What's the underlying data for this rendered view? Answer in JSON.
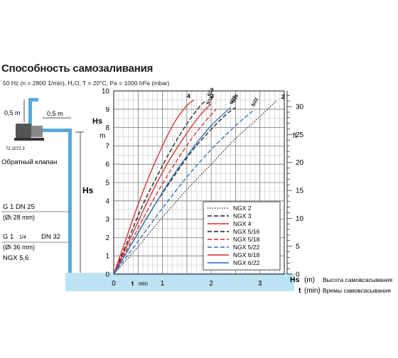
{
  "title": "Способность самозаливания",
  "conditions": "50 Hz (n = 2800 1/min),  H₂O, T = 20°C, Pa = 1000 hPa (mbar)",
  "diagram": {
    "dim_vertical": "0,5 m",
    "dim_horizontal": "0,5 m",
    "code": "72.1072.3",
    "valve_label": "Обратный клапан",
    "hs_label": "Hs",
    "connection_1": {
      "line1": "G 1     DN 25",
      "line2": "(Øi 28 mm)"
    },
    "connection_2": {
      "line1": "G 1",
      "frac": "1/4",
      "line1b": "DN 32",
      "line2": "(Øi 36 mm)",
      "line3": "NGX 5,6"
    }
  },
  "axes": {
    "left_title": "Hs",
    "left_unit": "m",
    "right_unit": "ft",
    "x_unit_label": "t",
    "x_unit_min": "min",
    "left_ticks": [
      "0",
      "1",
      "2",
      "3",
      "4",
      "5",
      "6",
      "7",
      "8",
      "9",
      "10"
    ],
    "right_ticks": [
      "0",
      "5",
      "10",
      "15",
      "20",
      "25",
      "30"
    ],
    "x_ticks": [
      "0",
      "1",
      "2",
      "3"
    ],
    "bottom_legend_1_symbol": "Hs",
    "bottom_legend_1_unit": "(m)",
    "bottom_legend_1_text": "Высота самовсасывания",
    "bottom_legend_2_symbol": "t",
    "bottom_legend_2_unit": "(min)",
    "bottom_legend_2_text": "Времы самовсасывания"
  },
  "colors": {
    "black": "#1a1a1a",
    "red": "#d42a2a",
    "blue": "#2a6fb4",
    "water": "#bde3f2",
    "pipe": "#5aa9d6"
  },
  "chart_data": {
    "type": "line",
    "title": "",
    "xlabel": "t (min)",
    "ylabel": "Hs (m)",
    "xlim": [
      0,
      3.5
    ],
    "ylim": [
      0,
      10
    ],
    "y2_unit": "ft",
    "y2lim": [
      0,
      32.8
    ],
    "grid": true,
    "legend_position": "lower-right",
    "series": [
      {
        "name": "NGX 2",
        "color": "#1a1a1a",
        "dash": "dot",
        "curve_label": "2",
        "x": [
          0,
          0.5,
          1.0,
          1.5,
          2.0,
          2.5,
          3.0,
          3.35
        ],
        "y": [
          0,
          1.5,
          3.1,
          4.6,
          6.0,
          7.4,
          8.6,
          9.5
        ]
      },
      {
        "name": "NGX 3",
        "color": "#1a1a1a",
        "dash": "dash",
        "curve_label": "3",
        "x": [
          0,
          0.3,
          0.6,
          0.9,
          1.2,
          1.5,
          1.75,
          1.9
        ],
        "y": [
          0,
          1.9,
          3.8,
          5.4,
          6.9,
          8.2,
          9.1,
          9.5
        ]
      },
      {
        "name": "NGX 4",
        "color": "#d42a2a",
        "dash": "solid",
        "curve_label": "4",
        "x": [
          0,
          0.25,
          0.5,
          0.75,
          1.0,
          1.25,
          1.5,
          1.65
        ],
        "y": [
          0,
          1.9,
          3.8,
          5.5,
          7.0,
          8.3,
          9.2,
          9.5
        ]
      },
      {
        "name": "NGX 5/16",
        "color": "#1a1a1a",
        "dash": "dash",
        "curve_label": "5/16",
        "x": [
          0,
          0.4,
          0.8,
          1.2,
          1.6,
          2.0,
          2.3,
          2.5
        ],
        "y": [
          0,
          1.8,
          3.6,
          5.2,
          6.7,
          7.9,
          8.7,
          9.1
        ]
      },
      {
        "name": "NGX 5/18",
        "color": "#d42a2a",
        "dash": "dash",
        "curve_label": "5/18",
        "x": [
          0,
          0.4,
          0.8,
          1.2,
          1.6,
          1.9,
          2.1
        ],
        "y": [
          0,
          2.0,
          4.0,
          5.8,
          7.4,
          8.4,
          9.0
        ]
      },
      {
        "name": "NGX 5/22",
        "color": "#2a6fb4",
        "dash": "dash",
        "curve_label": "5/22",
        "x": [
          0,
          0.5,
          1.0,
          1.5,
          2.0,
          2.5,
          2.85
        ],
        "y": [
          0,
          1.8,
          3.6,
          5.3,
          6.8,
          8.1,
          8.9
        ]
      },
      {
        "name": "NGX 6/18",
        "color": "#d42a2a",
        "dash": "solid",
        "curve_label": "6/18",
        "x": [
          0,
          0.35,
          0.7,
          1.05,
          1.4,
          1.75,
          2.0
        ],
        "y": [
          0,
          2.0,
          4.0,
          5.8,
          7.3,
          8.6,
          9.3
        ]
      },
      {
        "name": "NGX 6/22",
        "color": "#2a6fb4",
        "dash": "solid",
        "curve_label": "6/22",
        "x": [
          0,
          0.4,
          0.8,
          1.2,
          1.6,
          2.0,
          2.4
        ],
        "y": [
          0,
          1.8,
          3.6,
          5.3,
          6.8,
          8.1,
          9.1
        ]
      }
    ],
    "legend": [
      "NGX 2",
      "NGX 3",
      "NGX 4",
      "NGX 5/16",
      "NGX 5/18",
      "NGX 5/22",
      "NGX 6/18",
      "NGX 6/22"
    ]
  }
}
